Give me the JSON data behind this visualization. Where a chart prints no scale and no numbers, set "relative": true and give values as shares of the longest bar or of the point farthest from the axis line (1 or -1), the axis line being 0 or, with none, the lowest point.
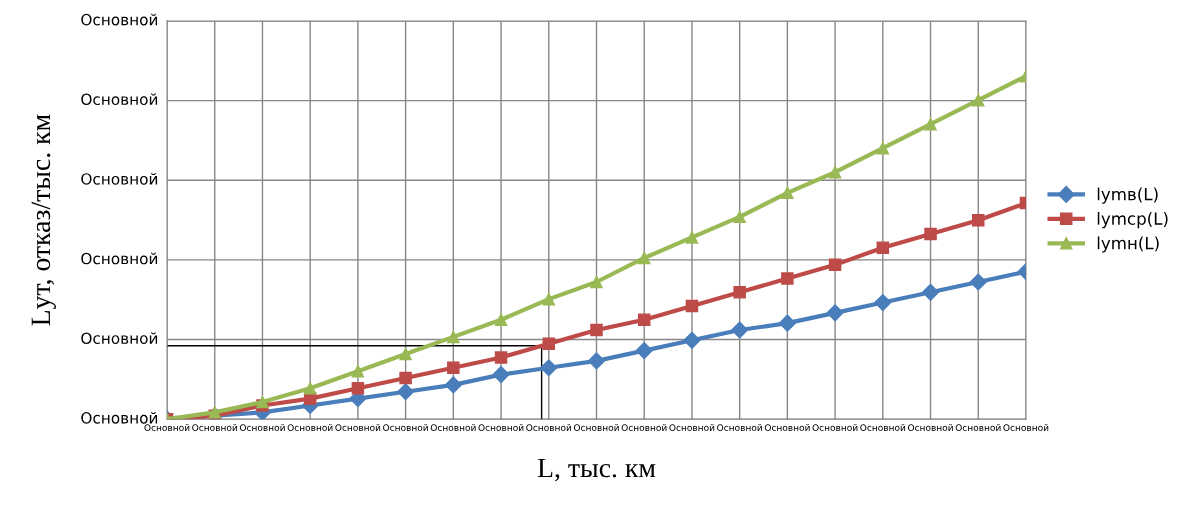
{
  "chart_data": {
    "type": "line",
    "relative": true,
    "xlabel": "L, тыс. км",
    "ylabel": "Lут, отказ/тыс. км",
    "categories": [
      "Основной",
      "Основной",
      "Основной",
      "Основной",
      "Основной",
      "Основной",
      "Основной",
      "Основной",
      "Основной",
      "Основной",
      "Основной",
      "Основной",
      "Основной",
      "Основной",
      "Основной",
      "Основной",
      "Основной",
      "Основной",
      "Основной"
    ],
    "annotations": [
      "Основной",
      "Основной",
      "Основной",
      "Основной",
      "Основной",
      "Основной"
    ],
    "series": [
      {
        "name": "lymв(L)",
        "color": "#4a7ebb",
        "marker": "diamond",
        "values": [
          0,
          0.01,
          0.02,
          0.04,
          0.06,
          0.08,
          0.1,
          0.13,
          0.15,
          0.17,
          0.2,
          0.23,
          0.26,
          0.28,
          0.31,
          0.34,
          0.37,
          0.4,
          0.43
        ]
      },
      {
        "name": "lymср(L)",
        "color": "#be4b48",
        "marker": "square",
        "values": [
          0,
          0.01,
          0.04,
          0.06,
          0.09,
          0.12,
          0.15,
          0.18,
          0.22,
          0.26,
          0.29,
          0.33,
          0.37,
          0.41,
          0.45,
          0.5,
          0.54,
          0.58,
          0.63
        ]
      },
      {
        "name": "lymн(L)",
        "color": "#98b954",
        "marker": "triangle",
        "values": [
          0,
          0.02,
          0.05,
          0.09,
          0.14,
          0.19,
          0.24,
          0.29,
          0.35,
          0.4,
          0.47,
          0.53,
          0.59,
          0.66,
          0.72,
          0.79,
          0.86,
          0.93,
          1
        ]
      }
    ],
    "ref_lines": [
      {
        "axis": "y",
        "value": 0.214,
        "color": "#000000"
      }
    ],
    "grid": true,
    "legend": "right"
  }
}
